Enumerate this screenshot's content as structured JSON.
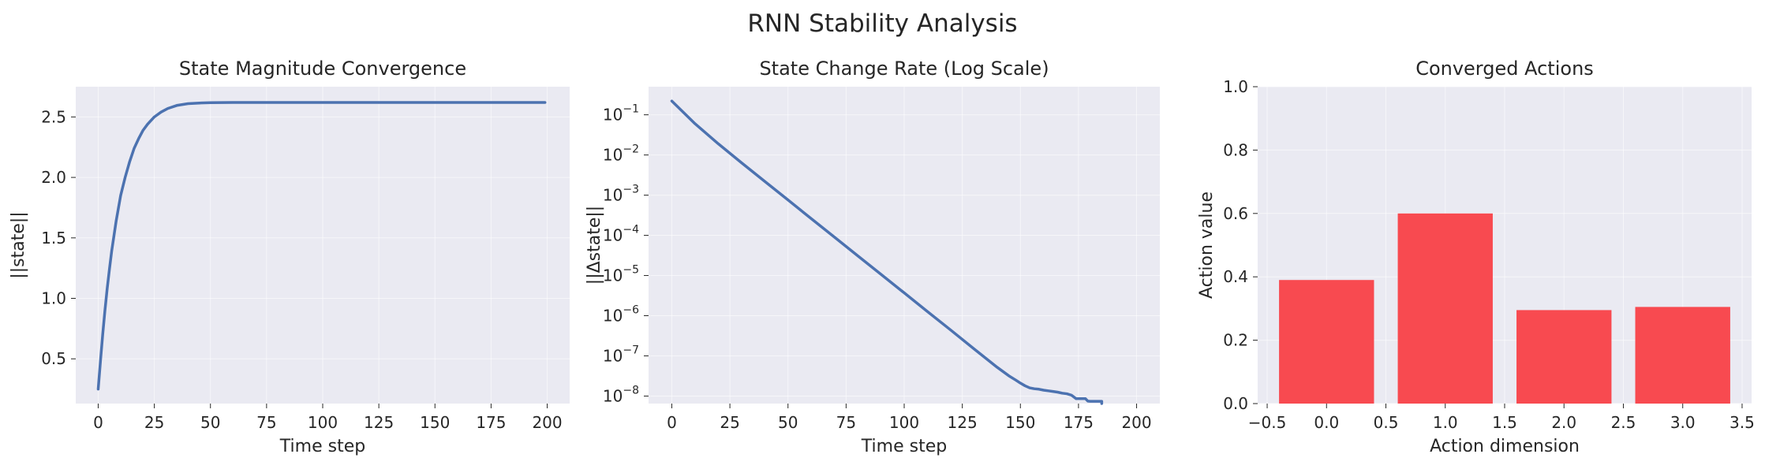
{
  "suptitle": "RNN Stability Analysis",
  "chart_data": [
    {
      "type": "line",
      "title": "State Magnitude Convergence",
      "xlabel": "Time step",
      "ylabel": "||state||",
      "xlim": [
        -10,
        210
      ],
      "ylim": [
        0.13,
        2.75
      ],
      "xticks": [
        0,
        25,
        50,
        75,
        100,
        125,
        150,
        175,
        200
      ],
      "yticks": [
        0.5,
        1.0,
        1.5,
        2.0,
        2.5
      ],
      "ytick_labels": [
        "0.5",
        "1.0",
        "1.5",
        "2.0",
        "2.5"
      ],
      "grid": true,
      "color": "#4c72b0",
      "x": [
        0,
        1,
        2,
        3,
        4,
        5,
        6,
        8,
        10,
        12,
        14,
        16,
        18,
        20,
        22,
        25,
        28,
        31,
        35,
        40,
        45,
        50,
        60,
        70,
        80,
        100,
        120,
        140,
        160,
        180,
        199
      ],
      "y": [
        0.25,
        0.48,
        0.7,
        0.9,
        1.08,
        1.24,
        1.39,
        1.64,
        1.85,
        2.0,
        2.13,
        2.24,
        2.32,
        2.39,
        2.44,
        2.5,
        2.54,
        2.57,
        2.595,
        2.61,
        2.615,
        2.618,
        2.62,
        2.62,
        2.62,
        2.62,
        2.62,
        2.62,
        2.62,
        2.62,
        2.62
      ]
    },
    {
      "type": "line",
      "title": "State Change Rate (Log Scale)",
      "xlabel": "Time step",
      "ylabel": "||Δstate||",
      "yscale": "log",
      "xlim": [
        -10,
        210
      ],
      "ylim": [
        6.5e-09,
        0.5
      ],
      "xticks": [
        0,
        25,
        50,
        75,
        100,
        125,
        150,
        175,
        200
      ],
      "yticks": [
        1e-08,
        1e-07,
        1e-06,
        1e-05,
        0.0001,
        0.001,
        0.01,
        0.1
      ],
      "ytick_exponents": [
        "−8",
        "−7",
        "−6",
        "−5",
        "−4",
        "−3",
        "−2",
        "−1"
      ],
      "grid": true,
      "color": "#4c72b0",
      "x": [
        0,
        10,
        20,
        30,
        40,
        50,
        60,
        70,
        80,
        90,
        100,
        110,
        120,
        130,
        140,
        145,
        148,
        150,
        152,
        154,
        156,
        158,
        160,
        162,
        164,
        166,
        168,
        170,
        172,
        173,
        174,
        176,
        178,
        179,
        180,
        182,
        184,
        185,
        185
      ],
      "y": [
        0.22,
        0.06,
        0.019,
        0.0064,
        0.0022,
        0.00076,
        0.00026,
        9e-05,
        3.1e-05,
        1.07e-05,
        3.7e-06,
        1.27e-06,
        4.4e-07,
        1.5e-07,
        5.2e-08,
        3.2e-08,
        2.5e-08,
        2.1e-08,
        1.8e-08,
        1.6e-08,
        1.52e-08,
        1.48e-08,
        1.4e-08,
        1.35e-08,
        1.3e-08,
        1.25e-08,
        1.18e-08,
        1.14e-08,
        1.05e-08,
        9.5e-09,
        8.6e-09,
        8.6e-09,
        8.6e-09,
        7.5e-09,
        7.4e-09,
        7.4e-09,
        7.4e-09,
        7.4e-09,
        6.5e-09
      ]
    },
    {
      "type": "bar",
      "title": "Converged Actions",
      "xlabel": "Action dimension",
      "ylabel": "Action value",
      "xlim": [
        -0.58,
        3.58
      ],
      "ylim": [
        0,
        1
      ],
      "xticks": [
        -0.5,
        0.0,
        0.5,
        1.0,
        1.5,
        2.0,
        2.5,
        3.0,
        3.5
      ],
      "xtick_labels": [
        "−0.5",
        "0.0",
        "0.5",
        "1.0",
        "1.5",
        "2.0",
        "2.5",
        "3.0",
        "3.5"
      ],
      "yticks": [
        0.0,
        0.2,
        0.4,
        0.6,
        0.8,
        1.0
      ],
      "ytick_labels": [
        "0.0",
        "0.2",
        "0.4",
        "0.6",
        "0.8",
        "1.0"
      ],
      "grid": true,
      "color": "#f8444a",
      "categories": [
        0,
        1,
        2,
        3
      ],
      "values": [
        0.39,
        0.6,
        0.295,
        0.305
      ],
      "bar_width": 0.8
    }
  ]
}
